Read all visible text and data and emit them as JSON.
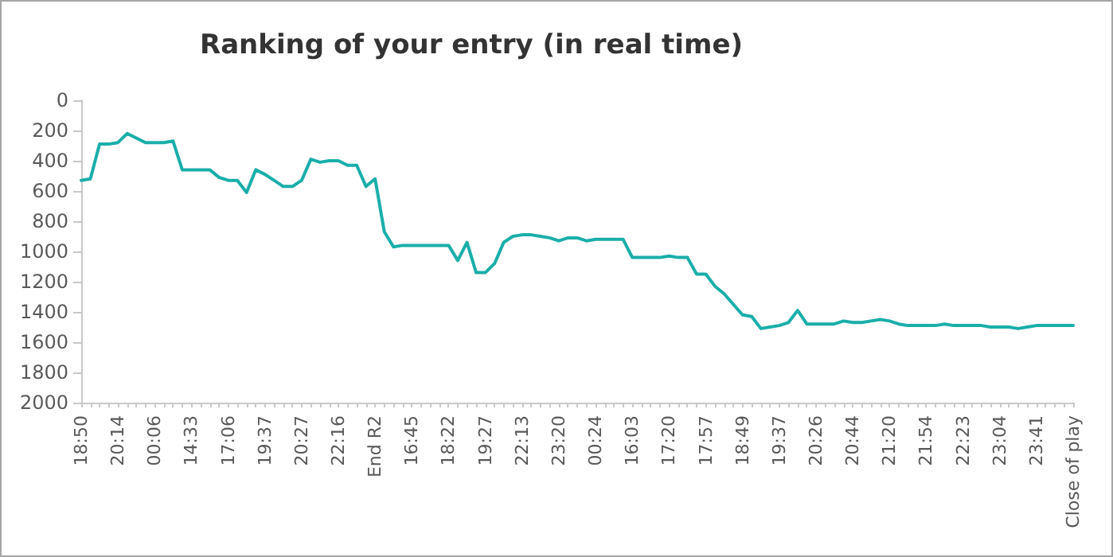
{
  "chart_data": {
    "type": "line",
    "title": "Ranking of your entry (in real time)",
    "categories": [
      "18:50",
      null,
      null,
      null,
      "20:14",
      null,
      null,
      null,
      "00:06",
      null,
      null,
      null,
      "14:33",
      null,
      null,
      null,
      "17:06",
      null,
      null,
      null,
      "19:37",
      null,
      null,
      null,
      "20:27",
      null,
      null,
      null,
      "22:16",
      null,
      null,
      null,
      "End R2",
      null,
      null,
      null,
      "16:45",
      null,
      null,
      null,
      "18:22",
      null,
      null,
      null,
      "19:27",
      null,
      null,
      null,
      "22:13",
      null,
      null,
      null,
      "23:20",
      null,
      null,
      null,
      "00:24",
      null,
      null,
      null,
      "16:03",
      null,
      null,
      null,
      "17:20",
      null,
      null,
      null,
      "17:57",
      null,
      null,
      null,
      "18:49",
      null,
      null,
      null,
      "19:37",
      null,
      null,
      null,
      "20:26",
      null,
      null,
      null,
      "20:44",
      null,
      null,
      null,
      "21:20",
      null,
      null,
      null,
      "21:54",
      null,
      null,
      null,
      "22:23",
      null,
      null,
      null,
      "23:04",
      null,
      null,
      null,
      "23:41",
      null,
      null,
      null,
      "Close of play"
    ],
    "series": [
      {
        "color": "#1aaea9",
        "values": [
          530,
          520,
          290,
          290,
          280,
          220,
          250,
          280,
          280,
          280,
          270,
          460,
          460,
          460,
          460,
          510,
          530,
          530,
          610,
          460,
          490,
          530,
          570,
          570,
          530,
          390,
          410,
          400,
          400,
          430,
          430,
          570,
          520,
          870,
          970,
          960,
          960,
          960,
          960,
          960,
          960,
          1060,
          940,
          1140,
          1140,
          1080,
          940,
          900,
          890,
          890,
          900,
          910,
          930,
          910,
          910,
          930,
          920,
          920,
          920,
          920,
          1040,
          1040,
          1040,
          1040,
          1030,
          1040,
          1040,
          1150,
          1150,
          1230,
          1280,
          1350,
          1420,
          1430,
          1510,
          1500,
          1490,
          1470,
          1390,
          1480,
          1480,
          1480,
          1480,
          1460,
          1470,
          1470,
          1460,
          1450,
          1460,
          1480,
          1490,
          1490,
          1490,
          1490,
          1480,
          1490,
          1490,
          1490,
          1490,
          1500,
          1500,
          1500,
          1510,
          1500,
          1490,
          1490,
          1490,
          1490,
          1490
        ]
      }
    ],
    "ylim": [
      2000,
      0
    ],
    "yticks": [
      0,
      200,
      400,
      600,
      800,
      1000,
      1200,
      1400,
      1600,
      1800,
      2000
    ],
    "grid": false,
    "marker": "none",
    "line_style": "solid"
  }
}
